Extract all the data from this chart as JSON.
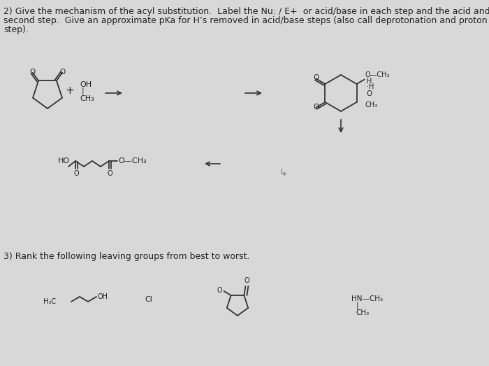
{
  "bg_color": "#d8d8d8",
  "text_color": "#222222",
  "line_color": "#333333",
  "title_line1": "2) Give the mechanism of the acyl substitution.  Label the Nu: / E+  or acid/base in each step and the acid and base in the",
  "title_line2": "second step.  Give an approximate pKa for H’s removed in acid/base steps (also call deprotonation and proton transfer",
  "title_line3": "step).",
  "section3": "3) Rank the following leaving groups from best to worst.",
  "font_body": 9.0,
  "font_chem": 8.0,
  "font_small": 7.0
}
